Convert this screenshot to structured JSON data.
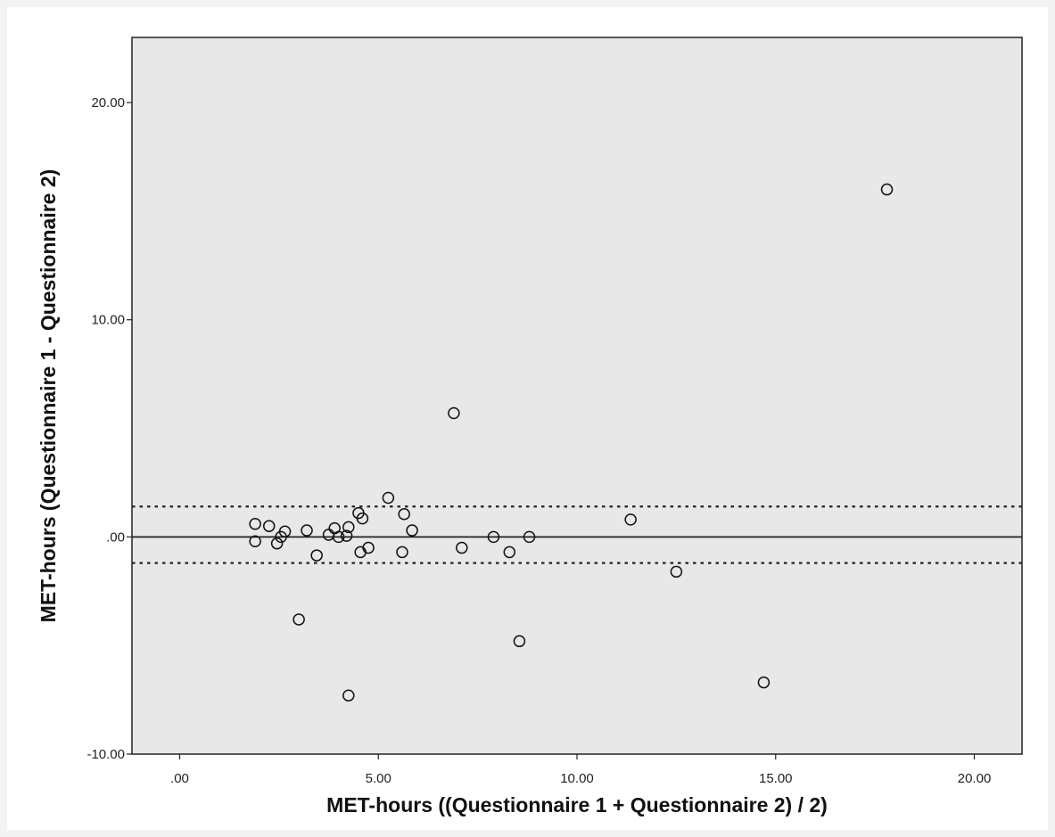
{
  "chart_data": {
    "type": "scatter",
    "title": "",
    "xlabel": "MET-hours ((Questionnaire 1 + Questionnaire 2) / 2)",
    "ylabel": "MET-hours (Questionnaire 1 - Questionnaire 2)",
    "xlim": [
      -1.2,
      21.2
    ],
    "ylim": [
      -10,
      23
    ],
    "x_ticks": [
      0,
      5,
      10,
      15,
      20
    ],
    "x_tick_labels": [
      ".00",
      "5.00",
      "10.00",
      "15.00",
      "20.00"
    ],
    "y_ticks": [
      -10,
      0,
      10,
      20
    ],
    "y_tick_labels": [
      "-10.00",
      ".00",
      "10.00",
      "20.00"
    ],
    "grid": false,
    "background_color": "#e8e8e8",
    "reference_lines": [
      {
        "y": 0,
        "style": "solid"
      },
      {
        "y": 1.4,
        "style": "dotted"
      },
      {
        "y": -1.2,
        "style": "dotted"
      }
    ],
    "points": [
      {
        "x": 1.9,
        "y": 0.6
      },
      {
        "x": 1.9,
        "y": -0.2
      },
      {
        "x": 2.25,
        "y": 0.5
      },
      {
        "x": 2.45,
        "y": -0.3
      },
      {
        "x": 2.55,
        "y": 0.0
      },
      {
        "x": 2.65,
        "y": 0.25
      },
      {
        "x": 3.0,
        "y": -3.8
      },
      {
        "x": 3.2,
        "y": 0.3
      },
      {
        "x": 3.45,
        "y": -0.85
      },
      {
        "x": 3.75,
        "y": 0.1
      },
      {
        "x": 3.9,
        "y": 0.4
      },
      {
        "x": 4.0,
        "y": 0.0
      },
      {
        "x": 4.2,
        "y": 0.05
      },
      {
        "x": 4.25,
        "y": 0.45
      },
      {
        "x": 4.25,
        "y": -7.3
      },
      {
        "x": 4.5,
        "y": 1.1
      },
      {
        "x": 4.55,
        "y": -0.7
      },
      {
        "x": 4.6,
        "y": 0.85
      },
      {
        "x": 4.75,
        "y": -0.5
      },
      {
        "x": 5.25,
        "y": 1.8
      },
      {
        "x": 5.6,
        "y": -0.7
      },
      {
        "x": 5.65,
        "y": 1.05
      },
      {
        "x": 5.85,
        "y": 0.3
      },
      {
        "x": 6.9,
        "y": 5.7
      },
      {
        "x": 7.1,
        "y": -0.5
      },
      {
        "x": 7.9,
        "y": 0.0
      },
      {
        "x": 8.3,
        "y": -0.7
      },
      {
        "x": 8.55,
        "y": -4.8
      },
      {
        "x": 8.8,
        "y": 0.0
      },
      {
        "x": 11.35,
        "y": 0.8
      },
      {
        "x": 12.5,
        "y": -1.6
      },
      {
        "x": 14.7,
        "y": -6.7
      },
      {
        "x": 17.8,
        "y": 16.0
      }
    ]
  }
}
